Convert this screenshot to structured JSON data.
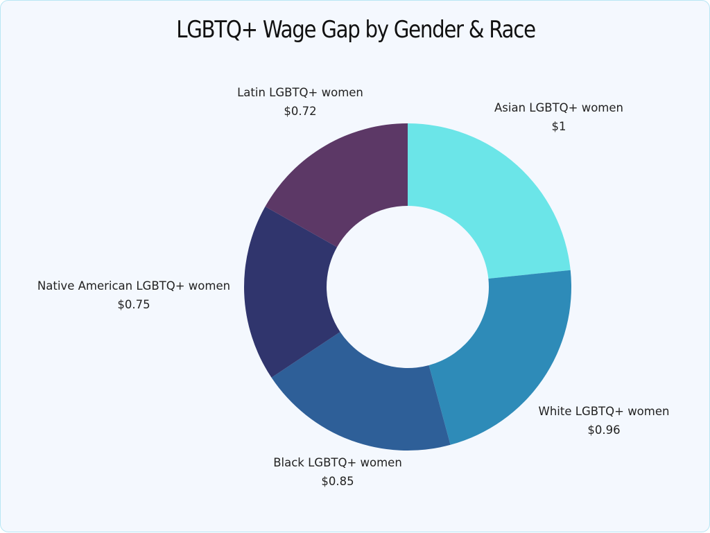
{
  "title": "LGBTQ+ Wage Gap by Gender & Race",
  "colors": {
    "background": "#f4f8fe",
    "border": "#b8e6f4"
  },
  "slices": [
    {
      "label": "Asian LGBTQ+ women",
      "value_text": "$1",
      "value": 1.0,
      "color": "#6be5e8"
    },
    {
      "label": "White LGBTQ+ women",
      "value_text": "$0.96",
      "value": 0.96,
      "color": "#2e8bb8"
    },
    {
      "label": "Black LGBTQ+ women",
      "value_text": "$0.85",
      "value": 0.85,
      "color": "#2e5f98"
    },
    {
      "label": "Native American LGBTQ+ women",
      "value_text": "$0.75",
      "value": 0.75,
      "color": "#30356d"
    },
    {
      "label": "Latin LGBTQ+ women",
      "value_text": "$0.72",
      "value": 0.72,
      "color": "#5c3866"
    }
  ],
  "chart_data": {
    "type": "pie",
    "variant": "donut",
    "title": "LGBTQ+ Wage Gap by Gender & Race",
    "categories": [
      "Asian LGBTQ+ women",
      "White LGBTQ+ women",
      "Black LGBTQ+ women",
      "Native American LGBTQ+ women",
      "Latin LGBTQ+ women"
    ],
    "values": [
      1.0,
      0.96,
      0.85,
      0.75,
      0.72
    ],
    "value_labels": [
      "$1",
      "$0.96",
      "$0.85",
      "$0.75",
      "$0.72"
    ],
    "colors": [
      "#6be5e8",
      "#2e8bb8",
      "#2e5f98",
      "#30356d",
      "#5c3866"
    ],
    "start_angle": "12 o'clock",
    "direction": "clockwise",
    "legend": "none (outside slice labels)",
    "unit": "USD earned per $1"
  }
}
